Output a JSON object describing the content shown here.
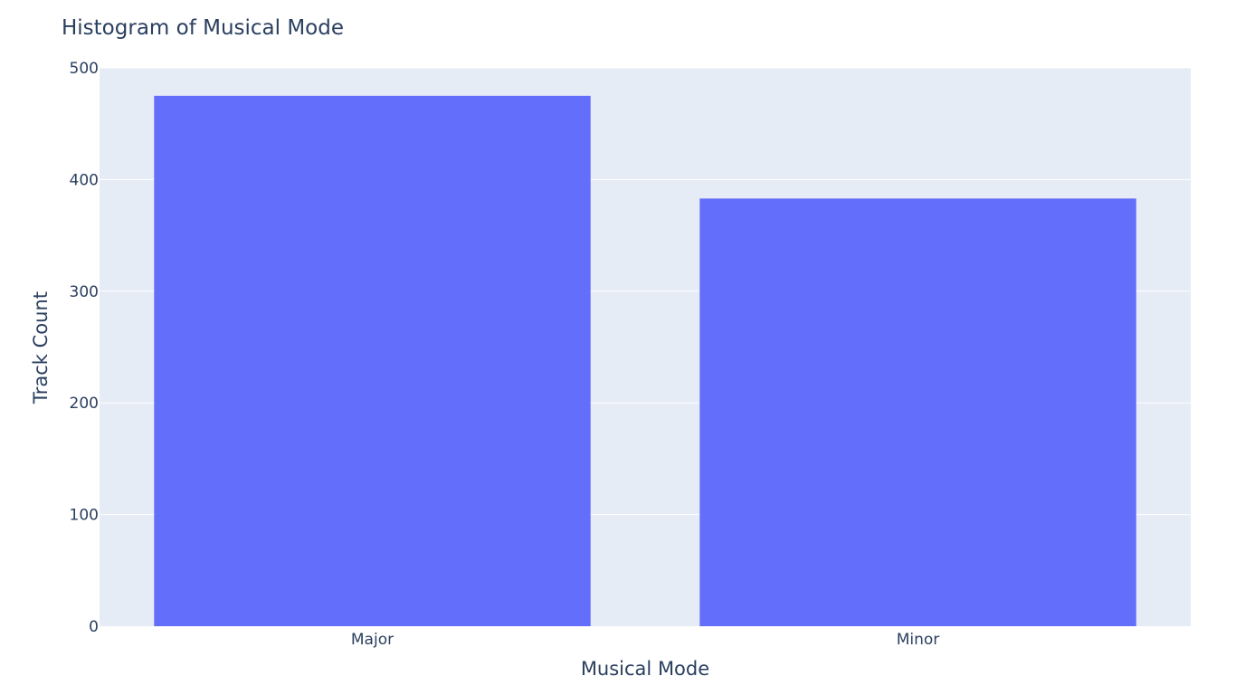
{
  "chart_data": {
    "type": "bar",
    "title": "Histogram of Musical Mode",
    "xlabel": "Musical Mode",
    "ylabel": "Track Count",
    "categories": [
      "Major",
      "Minor"
    ],
    "values": [
      475,
      383
    ],
    "ylim": [
      0,
      500
    ],
    "yticks": [
      "0",
      "100",
      "200",
      "300",
      "400",
      "500"
    ],
    "ytick_values": [
      0,
      100,
      200,
      300,
      400,
      500
    ],
    "grid": true,
    "legend": "none",
    "colors": {
      "bar": "#636efa",
      "plot_background": "#e5ecf6",
      "gridline": "#ffffff",
      "text": "#2a3f5f"
    }
  }
}
